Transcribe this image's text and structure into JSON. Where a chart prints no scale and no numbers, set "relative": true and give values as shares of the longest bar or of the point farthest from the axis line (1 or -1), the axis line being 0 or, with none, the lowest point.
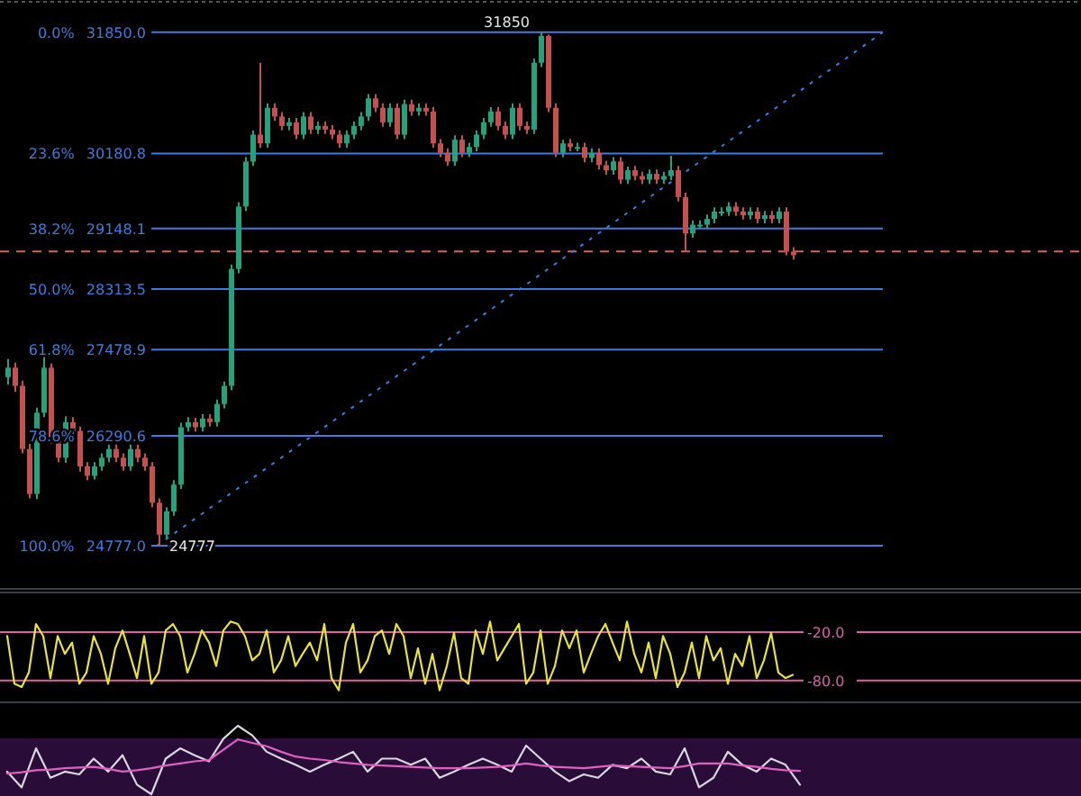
{
  "chart_data": [
    {
      "type": "candlestick",
      "categories": [
        null,
        null,
        null,
        null,
        null,
        null,
        null,
        null,
        null,
        null,
        null,
        null,
        null,
        null,
        null,
        null,
        null,
        null,
        null,
        null,
        null,
        null,
        null,
        null,
        null,
        null,
        null,
        null,
        null,
        null,
        null,
        null,
        null,
        null,
        null,
        null,
        null,
        null,
        null,
        null,
        null,
        null,
        null,
        null,
        null,
        null,
        null,
        null,
        null,
        null,
        null,
        null,
        null,
        null,
        null,
        null,
        null,
        null,
        null,
        null,
        null,
        null,
        null,
        null,
        null,
        null,
        null,
        null,
        null,
        null,
        null,
        null,
        null,
        null,
        null,
        null,
        null,
        null,
        null,
        null,
        null,
        null,
        null,
        null,
        null,
        null,
        null,
        null,
        null,
        null,
        null,
        null,
        null,
        null,
        null,
        null,
        null,
        null,
        null,
        null,
        null,
        null,
        null,
        null,
        null,
        null,
        null,
        null,
        null,
        null
      ],
      "ylim": [
        24183,
        32270
      ],
      "grid": "y",
      "yticks": [
        {
          "value": 31850,
          "label": "31850.0"
        },
        {
          "value": 30180.8,
          "label": "30180.8"
        },
        {
          "value": 29148.1,
          "label": "29148.1"
        },
        {
          "value": 28313.5,
          "label": "28313.5"
        },
        {
          "value": 27478.9,
          "label": "27478.9"
        },
        {
          "value": 26290.6,
          "label": "26290.6"
        },
        {
          "value": 24777,
          "label": "24777.0"
        }
      ],
      "ohlc": [
        [
          27100,
          27350,
          27000,
          27230
        ],
        [
          27230,
          27300,
          26900,
          26980
        ],
        [
          26980,
          27050,
          26050,
          26110
        ],
        [
          26110,
          26180,
          25430,
          25490
        ],
        [
          25490,
          26680,
          25420,
          26610
        ],
        [
          26610,
          27400,
          26550,
          27230
        ],
        [
          27230,
          27290,
          26180,
          26240
        ],
        [
          26240,
          26300,
          25930,
          25990
        ],
        [
          25990,
          26560,
          25920,
          26480
        ],
        [
          26480,
          26550,
          26300,
          26360
        ],
        [
          26360,
          26420,
          25800,
          25870
        ],
        [
          25870,
          25930,
          25680,
          25740
        ],
        [
          25740,
          25930,
          25690,
          25870
        ],
        [
          25870,
          26050,
          25810,
          25990
        ],
        [
          25990,
          26170,
          25930,
          26110
        ],
        [
          26110,
          26170,
          25930,
          25990
        ],
        [
          25990,
          26050,
          25810,
          25870
        ],
        [
          25870,
          26170,
          25810,
          26110
        ],
        [
          26110,
          26170,
          25930,
          25990
        ],
        [
          25990,
          26050,
          25810,
          25870
        ],
        [
          25870,
          25930,
          25310,
          25370
        ],
        [
          25370,
          25430,
          24777,
          24930
        ],
        [
          24930,
          25310,
          24870,
          25250
        ],
        [
          25250,
          25680,
          25190,
          25620
        ],
        [
          25620,
          26470,
          25560,
          26410
        ],
        [
          26410,
          26550,
          26350,
          26480
        ],
        [
          26480,
          26540,
          26350,
          26410
        ],
        [
          26410,
          26590,
          26350,
          26530
        ],
        [
          26530,
          26590,
          26420,
          26480
        ],
        [
          26480,
          26790,
          26420,
          26730
        ],
        [
          26730,
          27040,
          26670,
          26980
        ],
        [
          26980,
          28650,
          26920,
          28590
        ],
        [
          28590,
          29510,
          28530,
          29450
        ],
        [
          29450,
          30130,
          29390,
          30070
        ],
        [
          30070,
          30500,
          30010,
          30440
        ],
        [
          30440,
          31430,
          30260,
          30320
        ],
        [
          30320,
          30870,
          30260,
          30810
        ],
        [
          30810,
          30870,
          30630,
          30690
        ],
        [
          30690,
          30750,
          30500,
          30560
        ],
        [
          30560,
          30670,
          30500,
          30610
        ],
        [
          30610,
          30670,
          30380,
          30440
        ],
        [
          30440,
          30750,
          30380,
          30690
        ],
        [
          30690,
          30750,
          30450,
          30510
        ],
        [
          30510,
          30620,
          30450,
          30560
        ],
        [
          30560,
          30620,
          30450,
          30510
        ],
        [
          30510,
          30570,
          30380,
          30440
        ],
        [
          30440,
          30500,
          30260,
          30320
        ],
        [
          30320,
          30500,
          30260,
          30440
        ],
        [
          30440,
          30620,
          30380,
          30560
        ],
        [
          30560,
          30750,
          30500,
          30690
        ],
        [
          30690,
          31000,
          30630,
          30940
        ],
        [
          30940,
          31000,
          30750,
          30810
        ],
        [
          30810,
          30870,
          30550,
          30610
        ],
        [
          30610,
          30870,
          30550,
          30810
        ],
        [
          30810,
          30870,
          30380,
          30440
        ],
        [
          30440,
          30920,
          30380,
          30860
        ],
        [
          30860,
          30920,
          30700,
          30760
        ],
        [
          30760,
          30870,
          30700,
          30810
        ],
        [
          30810,
          30870,
          30700,
          30760
        ],
        [
          30760,
          30820,
          30260,
          30320
        ],
        [
          30320,
          30380,
          30130,
          30190
        ],
        [
          30190,
          30250,
          30010,
          30070
        ],
        [
          30070,
          30430,
          30010,
          30370
        ],
        [
          30370,
          30430,
          30130,
          30190
        ],
        [
          30190,
          30330,
          30130,
          30270
        ],
        [
          30270,
          30500,
          30210,
          30440
        ],
        [
          30440,
          30670,
          30380,
          30610
        ],
        [
          30610,
          30820,
          30550,
          30760
        ],
        [
          30760,
          30820,
          30500,
          30560
        ],
        [
          30560,
          30620,
          30380,
          30440
        ],
        [
          30440,
          30870,
          30380,
          30810
        ],
        [
          30810,
          30870,
          30500,
          30560
        ],
        [
          30560,
          30620,
          30450,
          30510
        ],
        [
          30510,
          31490,
          30450,
          31430
        ],
        [
          31430,
          31850,
          31370,
          31800
        ],
        [
          31800,
          31820,
          30750,
          30810
        ],
        [
          30810,
          30870,
          30130,
          30190
        ],
        [
          30190,
          30370,
          30130,
          30320
        ],
        [
          30320,
          30380,
          30210,
          30270
        ],
        [
          30270,
          30330,
          30210,
          30270
        ],
        [
          30270,
          30330,
          30060,
          30120
        ],
        [
          30120,
          30250,
          30060,
          30190
        ],
        [
          30190,
          30250,
          29960,
          30020
        ],
        [
          30020,
          30080,
          29890,
          29950
        ],
        [
          29950,
          30130,
          29890,
          30070
        ],
        [
          30070,
          30130,
          29760,
          29820
        ],
        [
          29820,
          30000,
          29760,
          29950
        ],
        [
          29950,
          30010,
          29810,
          29870
        ],
        [
          29870,
          29930,
          29760,
          29820
        ],
        [
          29820,
          29960,
          29760,
          29900
        ],
        [
          29900,
          29960,
          29760,
          29820
        ],
        [
          29820,
          29930,
          29760,
          29870
        ],
        [
          29870,
          30150,
          29810,
          29950
        ],
        [
          29950,
          30010,
          29520,
          29580
        ],
        [
          29580,
          29640,
          28830,
          29080
        ],
        [
          29080,
          29260,
          29020,
          29200
        ],
        [
          29200,
          29260,
          29140,
          29200
        ],
        [
          29200,
          29340,
          29140,
          29280
        ],
        [
          29280,
          29440,
          29220,
          29380
        ],
        [
          29380,
          29440,
          29320,
          29380
        ],
        [
          29380,
          29510,
          29320,
          29450
        ],
        [
          29450,
          29510,
          29320,
          29380
        ],
        [
          29380,
          29440,
          29270,
          29330
        ],
        [
          29330,
          29440,
          29270,
          29380
        ],
        [
          29380,
          29440,
          29220,
          29280
        ],
        [
          29280,
          29390,
          29220,
          29330
        ],
        [
          29330,
          29390,
          29220,
          29280
        ],
        [
          29280,
          29440,
          29220,
          29380
        ],
        [
          29380,
          29440,
          28780,
          28830
        ],
        [
          28830,
          28890,
          28720,
          28780
        ]
      ],
      "ref_lines": [
        {
          "axis": "y",
          "value": 28830,
          "color": "#d4654f",
          "line_style": "dashed"
        }
      ],
      "annotations": [
        "31850",
        "24777",
        "0.0%",
        "23.6%",
        "38.2%",
        "50.0%",
        "61.8%",
        "78.6%",
        "100.0%"
      ]
    },
    {
      "type": "line",
      "categories": [
        null,
        null,
        null,
        null,
        null,
        null,
        null,
        null,
        null,
        null,
        null,
        null,
        null,
        null,
        null,
        null,
        null,
        null,
        null,
        null,
        null,
        null,
        null,
        null,
        null,
        null,
        null,
        null,
        null,
        null,
        null,
        null,
        null,
        null,
        null,
        null,
        null,
        null,
        null,
        null,
        null,
        null,
        null,
        null,
        null,
        null,
        null,
        null,
        null,
        null,
        null,
        null,
        null,
        null,
        null,
        null,
        null,
        null,
        null,
        null,
        null,
        null,
        null,
        null,
        null,
        null,
        null,
        null,
        null,
        null,
        null,
        null,
        null,
        null,
        null,
        null,
        null,
        null,
        null,
        null,
        null,
        null,
        null,
        null,
        null,
        null,
        null,
        null,
        null,
        null,
        null,
        null,
        null,
        null,
        null,
        null,
        null,
        null,
        null,
        null,
        null,
        null,
        null,
        null,
        null,
        null,
        null,
        null,
        null,
        null
      ],
      "ylim": [
        -107,
        29
      ],
      "yticks": [
        {
          "value": -20,
          "label": "-20.0"
        },
        {
          "value": -80,
          "label": "-80.0"
        }
      ],
      "grid": "y",
      "series": [
        {
          "color": "#e8e23a",
          "values": [
            -25,
            -84,
            -88,
            -70,
            -10,
            -25,
            -77,
            -25,
            -47,
            -33,
            -84,
            -70,
            -25,
            -47,
            -84,
            -40,
            -18,
            -47,
            -77,
            -25,
            -84,
            -70,
            -18,
            -10,
            -25,
            -70,
            -47,
            -18,
            -33,
            -62,
            -18,
            -7,
            -10,
            -25,
            -55,
            -47,
            -18,
            -70,
            -55,
            -25,
            -62,
            -47,
            -33,
            -55,
            -10,
            -77,
            -92,
            -33,
            -10,
            -70,
            -55,
            -25,
            -18,
            -47,
            -10,
            -25,
            -77,
            -40,
            -84,
            -47,
            -92,
            -62,
            -21,
            -77,
            -84,
            -18,
            -47,
            -7,
            -55,
            -40,
            -25,
            -10,
            -84,
            -70,
            -18,
            -84,
            -62,
            -18,
            -40,
            -18,
            -70,
            -47,
            -25,
            -10,
            -33,
            -55,
            -7,
            -47,
            -70,
            -33,
            -77,
            -25,
            -47,
            -88,
            -70,
            -33,
            -77,
            -25,
            -55,
            -40,
            -84,
            -47,
            -62,
            -25,
            -77,
            -55,
            -21,
            -70,
            -77,
            -73
          ]
        }
      ]
    },
    {
      "type": "line",
      "relative": true,
      "categories": [
        null,
        null,
        null,
        null,
        null,
        null,
        null,
        null,
        null,
        null,
        null,
        null,
        null,
        null,
        null,
        null,
        null,
        null,
        null,
        null,
        null,
        null,
        null,
        null,
        null,
        null,
        null,
        null,
        null,
        null,
        null,
        null,
        null,
        null,
        null,
        null,
        null,
        null,
        null,
        null,
        null,
        null,
        null,
        null,
        null,
        null,
        null,
        null,
        null,
        null,
        null,
        null,
        null,
        null,
        null,
        null
      ],
      "series": [
        {
          "color": "#d8d8e0",
          "values": [
            0.33,
            0.1,
            0.67,
            0.24,
            0.33,
            0.29,
            0.52,
            0.33,
            0.57,
            0.14,
            0,
            0.52,
            0.67,
            0.57,
            0.48,
            0.81,
            1,
            0.86,
            0.62,
            0.52,
            0.43,
            0.33,
            0.43,
            0.52,
            0.62,
            0.33,
            0.52,
            0.52,
            0.43,
            0.52,
            0.24,
            0.33,
            0.43,
            0.52,
            0.43,
            0.33,
            0.71,
            0.52,
            0.33,
            0.19,
            0.29,
            0.24,
            0.43,
            0.38,
            0.52,
            0.33,
            0.29,
            0.67,
            0.1,
            0.24,
            0.62,
            0.43,
            0.33,
            0.52,
            0.43,
            0.14
          ]
        },
        {
          "color": "#e060c0",
          "values": [
            0.3,
            0.32,
            0.35,
            0.36,
            0.38,
            0.39,
            0.4,
            0.37,
            0.33,
            0.35,
            0.38,
            0.42,
            0.45,
            0.48,
            0.5,
            0.65,
            0.8,
            0.75,
            0.7,
            0.62,
            0.55,
            0.52,
            0.5,
            0.47,
            0.45,
            0.43,
            0.42,
            0.41,
            0.4,
            0.39,
            0.38,
            0.38,
            0.38,
            0.39,
            0.4,
            0.42,
            0.45,
            0.42,
            0.4,
            0.39,
            0.38,
            0.4,
            0.42,
            0.41,
            0.4,
            0.39,
            0.38,
            0.41,
            0.45,
            0.45,
            0.45,
            0.42,
            0.4,
            0.37,
            0.35,
            0.34
          ]
        }
      ]
    }
  ]
}
